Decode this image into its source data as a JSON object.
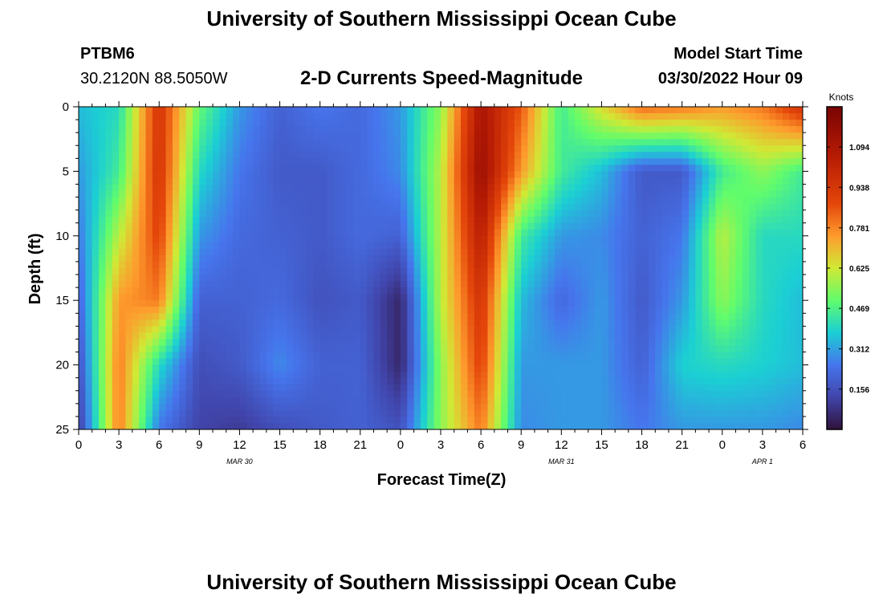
{
  "header": {
    "title": "University of Southern Mississippi Ocean Cube",
    "station": "PTBM6",
    "coords": "30.2120N  88.5050W",
    "plot_title": "2-D Currents Speed-Magnitude",
    "model_start_label": "Model Start Time",
    "model_start_value": "03/30/2022 Hour 09"
  },
  "footer": {
    "title": "University of Southern Mississippi Ocean Cube"
  },
  "chart_data": {
    "type": "heatmap",
    "title": "2-D Currents Speed-Magnitude",
    "xlabel": "Forecast Time(Z)",
    "ylabel": "Depth (ft)",
    "x_unit": "hours since 03/30 00Z",
    "xlim": [
      0,
      54
    ],
    "ylim": [
      0,
      25
    ],
    "y_inverted": true,
    "x_ticks": [
      0,
      3,
      6,
      9,
      12,
      15,
      18,
      21,
      24,
      27,
      30,
      33,
      36,
      39,
      42,
      45,
      48,
      51,
      54
    ],
    "x_tick_labels": [
      "0",
      "3",
      "6",
      "9",
      "12",
      "15",
      "18",
      "21",
      "0",
      "3",
      "6",
      "9",
      "12",
      "15",
      "18",
      "21",
      "0",
      "3",
      "6"
    ],
    "y_ticks": [
      0,
      5,
      10,
      15,
      20,
      25
    ],
    "y_tick_labels": [
      "0",
      "5",
      "10",
      "15",
      "20",
      "25"
    ],
    "date_labels": [
      {
        "text": "MAR 30",
        "x": 12
      },
      {
        "text": "MAR 31",
        "x": 36
      },
      {
        "text": "APR 1",
        "x": 51
      }
    ],
    "colorbar": {
      "label": "Knots",
      "ticks": [
        0.156,
        0.312,
        0.469,
        0.625,
        0.781,
        0.938,
        1.094
      ],
      "tick_labels": [
        "0.156",
        "0.312",
        "0.469",
        "0.625",
        "0.781",
        "0.938",
        "1.094"
      ],
      "range": [
        0,
        1.25
      ]
    },
    "depths": [
      0,
      5,
      10,
      15,
      20,
      25
    ],
    "times": [
      0,
      3,
      6,
      9,
      12,
      15,
      18,
      21,
      24,
      27,
      30,
      33,
      36,
      39,
      42,
      45,
      48,
      51,
      54
    ],
    "speed": [
      [
        0.35,
        0.4,
        0.95,
        0.5,
        0.3,
        0.2,
        0.25,
        0.22,
        0.3,
        0.55,
        1.1,
        0.85,
        0.45,
        0.65,
        0.82,
        0.8,
        0.75,
        0.8,
        0.95
      ],
      [
        0.3,
        0.45,
        0.95,
        0.4,
        0.25,
        0.18,
        0.18,
        0.22,
        0.28,
        0.6,
        1.15,
        0.75,
        0.45,
        0.35,
        0.18,
        0.18,
        0.45,
        0.55,
        0.45
      ],
      [
        0.25,
        0.6,
        0.9,
        0.3,
        0.22,
        0.2,
        0.18,
        0.22,
        0.2,
        0.6,
        1.05,
        0.45,
        0.3,
        0.28,
        0.2,
        0.25,
        0.6,
        0.4,
        0.4
      ],
      [
        0.2,
        0.75,
        0.8,
        0.2,
        0.2,
        0.22,
        0.16,
        0.18,
        0.05,
        0.6,
        0.95,
        0.35,
        0.22,
        0.3,
        0.18,
        0.3,
        0.55,
        0.4,
        0.35
      ],
      [
        0.15,
        0.8,
        0.4,
        0.15,
        0.18,
        0.28,
        0.2,
        0.2,
        0.05,
        0.55,
        0.9,
        0.3,
        0.3,
        0.3,
        0.2,
        0.38,
        0.4,
        0.38,
        0.35
      ],
      [
        0.1,
        0.8,
        0.25,
        0.12,
        0.1,
        0.15,
        0.18,
        0.2,
        0.16,
        0.55,
        0.8,
        0.28,
        0.3,
        0.3,
        0.25,
        0.3,
        0.3,
        0.3,
        0.28
      ]
    ]
  }
}
